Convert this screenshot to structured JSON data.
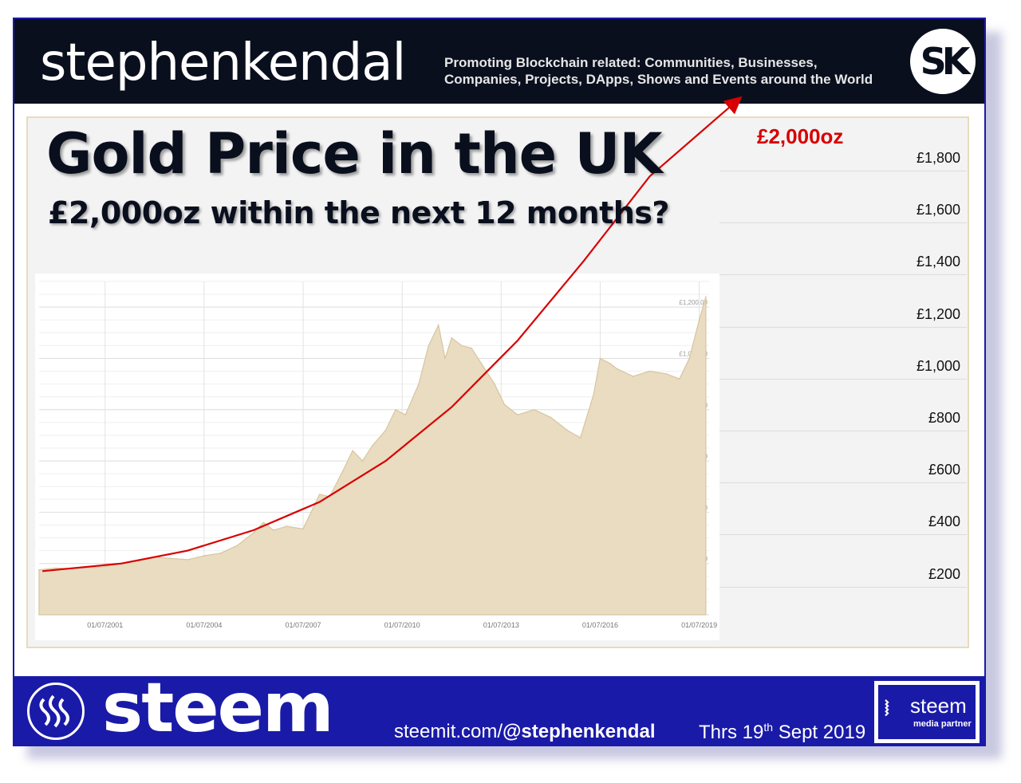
{
  "header": {
    "brand": "stephenkendal",
    "tagline_line1": "Promoting Blockchain related: Communities, Businesses,",
    "tagline_line2": "Companies, Projects, DApps, Shows and Events around the World",
    "logo_text": "SK"
  },
  "slide": {
    "title": "Gold Price in the UK",
    "subtitle": "£2,000oz within the next 12 months?",
    "target_label": "£2,000oz",
    "right_scale": [
      "£1,800",
      "£1,600",
      "£1,400",
      "£1,200",
      "£1,000",
      "£800",
      "£600",
      "£400",
      "£200"
    ]
  },
  "footer": {
    "steem_word": "steem",
    "url_prefix": "steemit.com/",
    "url_handle": "@stephenkendal",
    "date_prefix": "Thrs 19",
    "date_sup": "th",
    "date_suffix": " Sept 2019",
    "media_word": "steem",
    "media_sub": "media partner"
  },
  "colors": {
    "area_fill": "#e9dcc0",
    "area_stroke": "#d6c5a0",
    "trend_arrow": "#d80000",
    "header_bg": "#0a0f1e",
    "footer_bg": "#1a1aa8"
  },
  "chart_data": {
    "type": "area",
    "title": "Gold Price in the UK",
    "xlabel": "",
    "ylabel": "",
    "x_ticks": [
      "01/07/2001",
      "01/07/2004",
      "01/07/2007",
      "01/07/2010",
      "01/07/2013",
      "01/07/2016",
      "01/07/2019"
    ],
    "y_ticks": [
      "£200.00",
      "£400.00",
      "£600.00",
      "£800.00",
      "£1,000.00",
      "£1,200.00"
    ],
    "ylim": [
      0,
      1300
    ],
    "xlim": [
      1999.5,
      2019.8
    ],
    "grid": true,
    "series": [
      {
        "x": [
          1999.5,
          2000.0,
          2000.5,
          2001.0,
          2001.5,
          2002.0,
          2002.5,
          2003.0,
          2003.5,
          2004.0,
          2004.5,
          2005.0,
          2005.5,
          2006.0,
          2006.3,
          2006.6,
          2007.0,
          2007.5,
          2008.0,
          2008.3,
          2008.7,
          2009.0,
          2009.3,
          2009.6,
          2010.0,
          2010.3,
          2010.6,
          2011.0,
          2011.3,
          2011.6,
          2011.8,
          2012.0,
          2012.3,
          2012.6,
          2013.0,
          2013.3,
          2013.6,
          2014.0,
          2014.5,
          2015.0,
          2015.5,
          2015.9,
          2016.3,
          2016.5,
          2016.8,
          2017.0,
          2017.5,
          2018.0,
          2018.5,
          2018.9,
          2019.2,
          2019.5,
          2019.7
        ],
        "y": [
          175,
          182,
          180,
          183,
          188,
          200,
          210,
          225,
          220,
          215,
          230,
          240,
          270,
          320,
          360,
          330,
          345,
          335,
          470,
          460,
          560,
          640,
          600,
          660,
          720,
          800,
          780,
          900,
          1050,
          1130,
          1000,
          1080,
          1050,
          1040,
          960,
          900,
          820,
          780,
          800,
          770,
          720,
          690,
          860,
          1000,
          980,
          960,
          930,
          950,
          940,
          920,
          1000,
          1150,
          1240
        ]
      }
    ],
    "trend_arrow": {
      "x": [
        1999.6,
        2002.0,
        2004.0,
        2006.0,
        2008.0,
        2010.0,
        2012.0,
        2014.0,
        2016.0,
        2018.0,
        2020.6
      ],
      "y": [
        170,
        200,
        250,
        330,
        440,
        600,
        810,
        1070,
        1380,
        1710,
        2000
      ],
      "label": "£2,000oz"
    },
    "right_axis_ticks": [
      "£1,800",
      "£1,600",
      "£1,400",
      "£1,200",
      "£1,000",
      "£800",
      "£600",
      "£400",
      "£200"
    ]
  }
}
